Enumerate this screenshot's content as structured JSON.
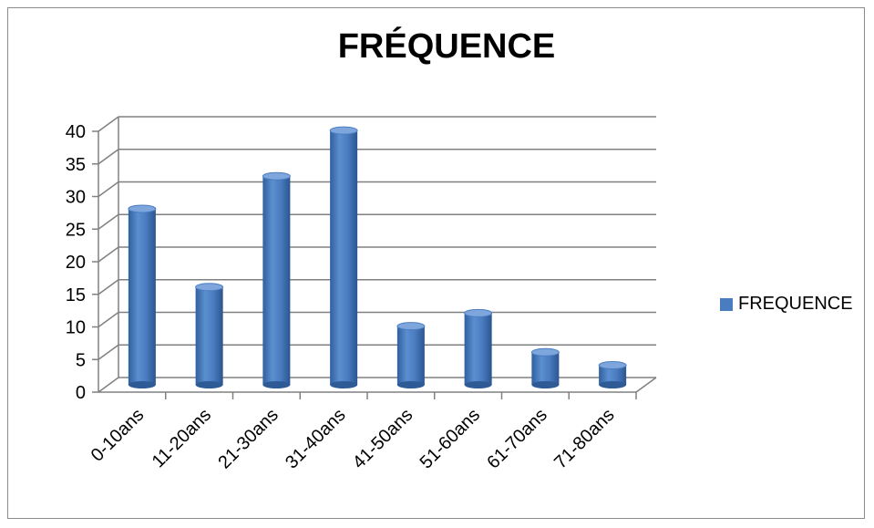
{
  "chart_data": {
    "type": "bar",
    "title": "FRÉQUENCE",
    "categories": [
      "0-10ans",
      "11-20ans",
      "21-30ans",
      "31-40ans",
      "41-50ans",
      "51-60ans",
      "61-70ans",
      "71-80ans"
    ],
    "series": [
      {
        "name": "FREQUENCE",
        "values": [
          27,
          15,
          32,
          39,
          9,
          11,
          5,
          3
        ]
      }
    ],
    "ylim": [
      0,
      40
    ],
    "yticks": [
      0,
      5,
      10,
      15,
      20,
      25,
      30,
      35,
      40
    ],
    "grid": true,
    "legend_position": "right",
    "colors": {
      "bar": "#4a7cc0",
      "bar_light": "#7ea6dc",
      "bar_dark": "#2e5a96",
      "grid": "#808080"
    }
  }
}
